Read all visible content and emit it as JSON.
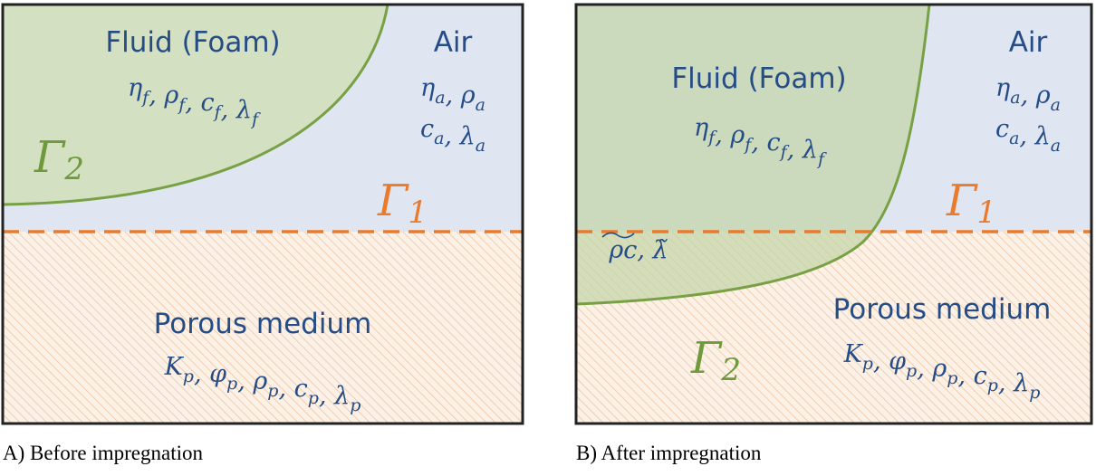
{
  "sep": ", ",
  "panels": [
    {
      "caption": "A) Before impregnation",
      "fluid": {
        "title": "Fluid (Foam)",
        "params": [
          [
            {
              "b": "η",
              "s": "f"
            },
            {
              "b": "ρ",
              "s": "f"
            },
            {
              "b": "c",
              "s": "f"
            },
            {
              "b": "λ",
              "s": "f"
            }
          ]
        ]
      },
      "air": {
        "title": "Air",
        "params": [
          [
            {
              "b": "η",
              "s": "a"
            },
            {
              "b": "ρ",
              "s": "a"
            }
          ],
          [
            {
              "b": "c",
              "s": "a"
            },
            {
              "b": "λ",
              "s": "a"
            }
          ]
        ]
      },
      "porous": {
        "title": "Porous medium",
        "params": [
          [
            {
              "b": "K",
              "s": "p"
            },
            {
              "b": "φ",
              "s": "p"
            },
            {
              "b": "ρ",
              "s": "p"
            },
            {
              "b": "c",
              "s": "p"
            },
            {
              "b": "λ",
              "s": "p"
            }
          ]
        ]
      },
      "gamma1": {
        "b": "Γ",
        "s": "1"
      },
      "gamma2": {
        "b": "Γ",
        "s": "2"
      }
    },
    {
      "caption": "B) After impregnation",
      "fluid": {
        "title": "Fluid (Foam)",
        "params": [
          [
            {
              "b": "η",
              "s": "f"
            },
            {
              "b": "ρ",
              "s": "f"
            },
            {
              "b": "c",
              "s": "f"
            },
            {
              "b": "λ",
              "s": "f"
            }
          ]
        ]
      },
      "air": {
        "title": "Air",
        "params": [
          [
            {
              "b": "η",
              "s": "a"
            },
            {
              "b": "ρ",
              "s": "a"
            }
          ],
          [
            {
              "b": "c",
              "s": "a"
            },
            {
              "b": "λ",
              "s": "a"
            }
          ]
        ]
      },
      "porous": {
        "title": "Porous medium",
        "params": [
          [
            {
              "b": "K",
              "s": "p"
            },
            {
              "b": "φ",
              "s": "p"
            },
            {
              "b": "ρ",
              "s": "p"
            },
            {
              "b": "c",
              "s": "p"
            },
            {
              "b": "λ",
              "s": "p"
            }
          ]
        ]
      },
      "mixed": {
        "params": [
          [
            {
              "b": "ρc"
            },
            {
              "b": "λ̃"
            }
          ]
        ]
      },
      "gamma1": {
        "b": "Γ",
        "s": "1"
      },
      "gamma2": {
        "b": "Γ",
        "s": "2"
      }
    }
  ]
}
